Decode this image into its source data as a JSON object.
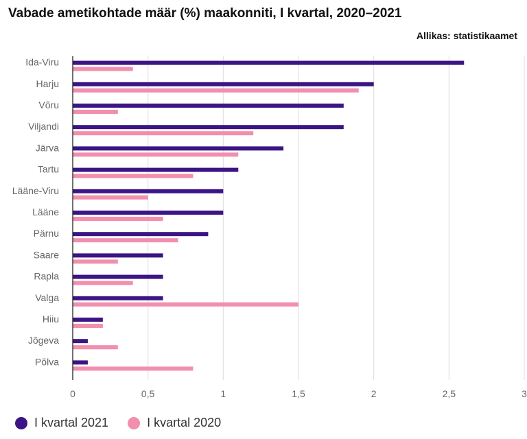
{
  "header": {
    "title": "Vabade ametikohtade määr (%) maakonniti, I kvartal, 2020–2021",
    "source": "Allikas: statistikaamet"
  },
  "colors": {
    "series_2021": "#3b1585",
    "series_2020": "#f28fae",
    "grid": "#dcdcdc",
    "axis": "#111111"
  },
  "chart_data": {
    "type": "bar",
    "orientation": "horizontal",
    "title": "Vabade ametikohtade määr (%) maakonniti, I kvartal, 2020–2021",
    "categories": [
      "Ida-Viru",
      "Harju",
      "Võru",
      "Viljandi",
      "Järva",
      "Tartu",
      "Lääne-Viru",
      "Lääne",
      "Pärnu",
      "Saare",
      "Rapla",
      "Valga",
      "Hiiu",
      "Jõgeva",
      "Põlva"
    ],
    "series": [
      {
        "name": "I kvartal 2021",
        "values": [
          2.6,
          2.0,
          1.8,
          1.8,
          1.4,
          1.1,
          1.0,
          1.0,
          0.9,
          0.6,
          0.6,
          0.6,
          0.2,
          0.1,
          0.1
        ]
      },
      {
        "name": "I kvartal 2020",
        "values": [
          0.4,
          1.9,
          0.3,
          1.2,
          1.1,
          0.8,
          0.5,
          0.6,
          0.7,
          0.3,
          0.4,
          1.5,
          0.2,
          0.3,
          0.8
        ]
      }
    ],
    "xlim": [
      0,
      3
    ],
    "xticks": [
      0,
      0.5,
      1,
      1.5,
      2,
      2.5,
      3
    ],
    "xtick_labels": [
      "0",
      "0,5",
      "1",
      "1,5",
      "2",
      "2,5",
      "3"
    ],
    "xlabel": "",
    "ylabel": "",
    "grid": true,
    "legend_position": "bottom-left"
  }
}
